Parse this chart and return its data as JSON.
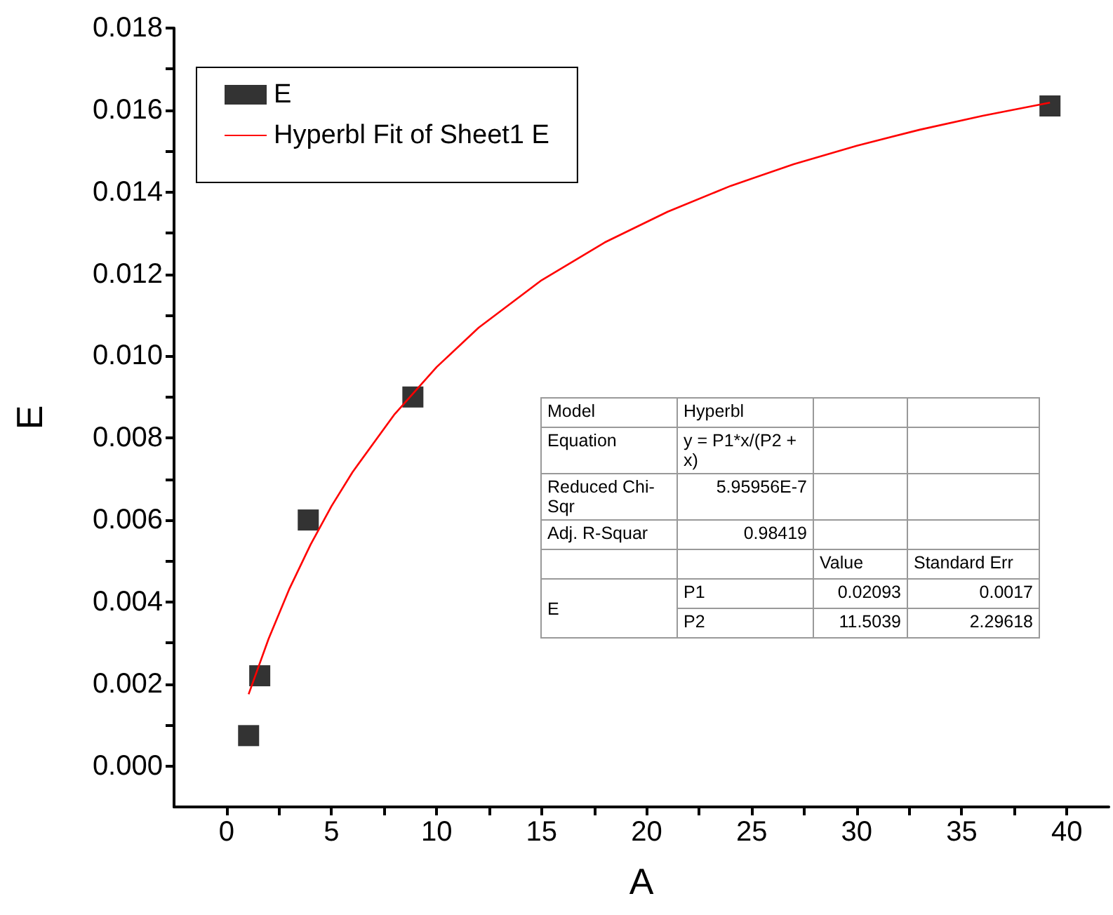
{
  "chart_data": {
    "type": "scatter",
    "xlabel": "A",
    "ylabel": "E",
    "xlim": [
      -2.5,
      42
    ],
    "ylim": [
      -0.001,
      0.018
    ],
    "xticks": [
      0,
      {
        "value": 2.5,
        "label": null
      },
      5,
      {
        "value": 7.5,
        "label": null
      },
      10,
      {
        "value": 12.5,
        "label": null
      },
      15,
      {
        "value": 17.5,
        "label": null
      },
      20,
      {
        "value": 22.5,
        "label": null
      },
      25,
      {
        "value": 27.5,
        "label": null
      },
      30,
      {
        "value": 32.5,
        "label": null
      },
      35,
      {
        "value": 37.5,
        "label": null
      },
      40
    ],
    "yticks": [
      {
        "value": 0,
        "label": "0.000"
      },
      {
        "value": 0.001,
        "label": null
      },
      {
        "value": 0.002,
        "label": "0.002"
      },
      {
        "value": 0.003,
        "label": null
      },
      {
        "value": 0.004,
        "label": "0.004"
      },
      {
        "value": 0.005,
        "label": null
      },
      {
        "value": 0.006,
        "label": "0.006"
      },
      {
        "value": 0.007,
        "label": null
      },
      {
        "value": 0.008,
        "label": "0.008"
      },
      {
        "value": 0.009,
        "label": null
      },
      {
        "value": 0.01,
        "label": "0.010"
      },
      {
        "value": 0.011,
        "label": null
      },
      {
        "value": 0.012,
        "label": "0.012"
      },
      {
        "value": 0.013,
        "label": null
      },
      {
        "value": 0.014,
        "label": "0.014"
      },
      {
        "value": 0.015,
        "label": null
      },
      {
        "value": 0.016,
        "label": "0.016"
      },
      {
        "value": 0.017,
        "label": null
      },
      {
        "value": 0.018,
        "label": "0.018"
      }
    ],
    "grid": false,
    "legend": "top left",
    "series": [
      {
        "name": "E",
        "marker": "square",
        "color": "#000000",
        "x": [
          1.05,
          1.58,
          3.89,
          8.87,
          39.2
        ],
        "values": [
          0.00074,
          0.0022,
          0.006,
          0.009,
          0.0161
        ]
      },
      {
        "name": "Hyperbl Fit of Sheet1 E",
        "type": "line",
        "marker": "none",
        "line_style": "solid",
        "color": "#ff0000",
        "x": [
          1.05,
          2,
          3,
          4,
          5,
          6,
          8,
          10,
          12,
          15,
          18,
          21,
          24,
          27,
          30,
          33,
          36,
          39.2
        ],
        "values": [
          0.00175,
          0.0031,
          0.00433,
          0.0054,
          0.00634,
          0.00717,
          0.00858,
          0.00973,
          0.01069,
          0.01185,
          0.01277,
          0.01352,
          0.01415,
          0.01468,
          0.01513,
          0.01552,
          0.01586,
          0.01618
        ]
      }
    ],
    "annotations": [
      "Model",
      "Hyperbl",
      "Equation",
      "y = P1*x/(P2 + x)",
      "Reduced Chi-Sqr",
      "5.95956E-7",
      "Adj. R-Squar",
      "0.98419",
      "Value",
      "Standard Err",
      "E",
      "P1",
      "0.02093",
      "0.0017",
      "P2",
      "11.5039",
      "2.29618"
    ]
  }
}
